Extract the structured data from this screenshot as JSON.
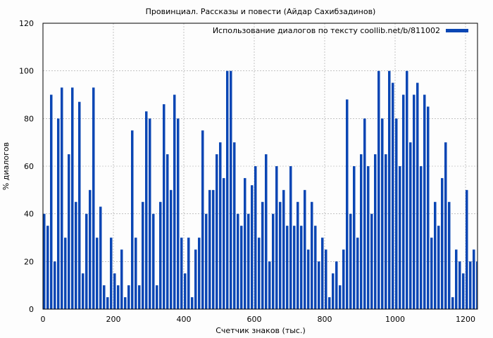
{
  "chart_data": {
    "type": "bar",
    "title": "Провинциал. Рассказы и повести (Айдар Сахибзадинов)",
    "xlabel": "Счетчик знаков (тыс.)",
    "ylabel": "% диалогов",
    "xlim": [
      0,
      1234
    ],
    "ylim": [
      0,
      120
    ],
    "xticks": [
      0,
      200,
      400,
      600,
      800,
      1000,
      1200
    ],
    "yticks": [
      0,
      20,
      40,
      60,
      80,
      100,
      120
    ],
    "grid": true,
    "legend_placement": "top-right",
    "color": "#0a46b4",
    "series": [
      {
        "name": "Использование диалогов по тексту coollib.net/b/811002",
        "x_step": 10,
        "x": [
          0,
          10,
          20,
          30,
          40,
          50,
          60,
          70,
          80,
          90,
          100,
          110,
          120,
          130,
          140,
          150,
          160,
          170,
          180,
          190,
          200,
          210,
          220,
          230,
          240,
          250,
          260,
          270,
          280,
          290,
          300,
          310,
          320,
          330,
          340,
          350,
          360,
          370,
          380,
          390,
          400,
          410,
          420,
          430,
          440,
          450,
          460,
          470,
          480,
          490,
          500,
          510,
          520,
          530,
          540,
          550,
          560,
          570,
          580,
          590,
          600,
          610,
          620,
          630,
          640,
          650,
          660,
          670,
          680,
          690,
          700,
          710,
          720,
          730,
          740,
          750,
          760,
          770,
          780,
          790,
          800,
          810,
          820,
          830,
          840,
          850,
          860,
          870,
          880,
          890,
          900,
          910,
          920,
          930,
          940,
          950,
          960,
          970,
          980,
          990,
          1000,
          1010,
          1020,
          1030,
          1040,
          1050,
          1060,
          1070,
          1080,
          1090,
          1100,
          1110,
          1120,
          1130,
          1140,
          1150,
          1160,
          1170,
          1180,
          1190,
          1200,
          1210,
          1220,
          1230
        ],
        "values": [
          40,
          35,
          90,
          20,
          80,
          93,
          30,
          65,
          93,
          45,
          87,
          15,
          40,
          50,
          93,
          30,
          43,
          10,
          5,
          30,
          15,
          10,
          25,
          5,
          10,
          75,
          30,
          10,
          45,
          83,
          80,
          40,
          10,
          45,
          86,
          65,
          50,
          90,
          80,
          30,
          15,
          30,
          5,
          25,
          30,
          75,
          40,
          50,
          50,
          65,
          70,
          55,
          100,
          100,
          70,
          40,
          35,
          55,
          40,
          52,
          60,
          30,
          45,
          65,
          20,
          40,
          60,
          45,
          50,
          35,
          60,
          35,
          45,
          35,
          50,
          25,
          45,
          35,
          20,
          30,
          25,
          5,
          15,
          20,
          10,
          25,
          88,
          40,
          60,
          30,
          65,
          80,
          60,
          40,
          65,
          100,
          80,
          65,
          100,
          95,
          80,
          60,
          90,
          100,
          70,
          90,
          95,
          60,
          90,
          85,
          30,
          45,
          35,
          55,
          70,
          45,
          5,
          25,
          20,
          15,
          50,
          20,
          25,
          20
        ]
      }
    ]
  }
}
